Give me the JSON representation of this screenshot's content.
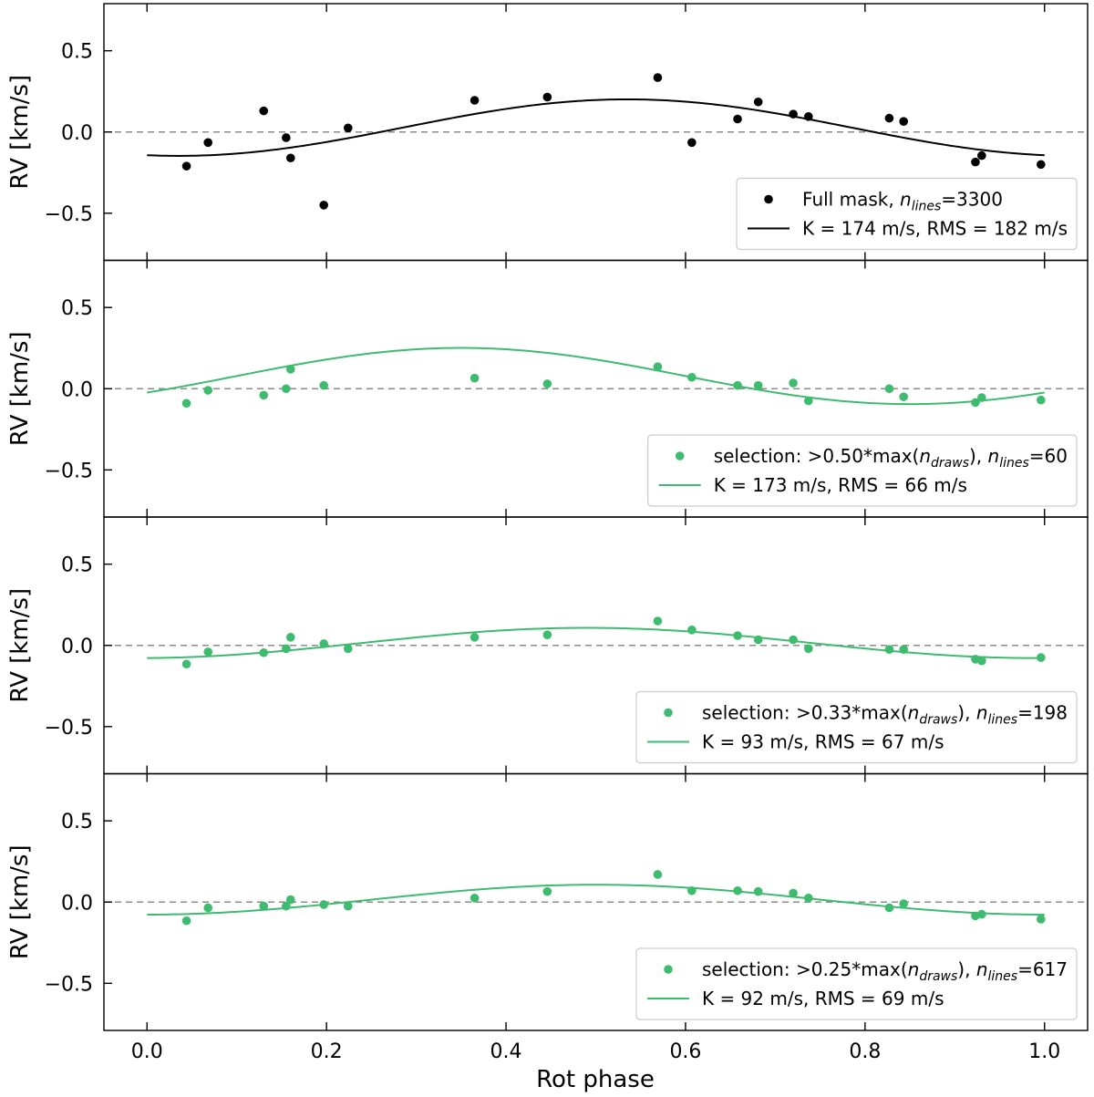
{
  "chart_data": {
    "type": "scatter",
    "xlabel": "Rot phase",
    "ylabel": "RV [km/s]",
    "xlim": [
      -0.048,
      1.048
    ],
    "ylim": [
      -0.79,
      0.79
    ],
    "xticks": [
      0.0,
      0.2,
      0.4,
      0.6,
      0.8,
      1.0
    ],
    "xtick_labels": [
      "0.0",
      "0.2",
      "0.4",
      "0.6",
      "0.8",
      "1.0"
    ],
    "yticks": [
      0.5,
      0.0,
      -0.5
    ],
    "ytick_labels": [
      "0.5",
      "0.0",
      "−0.5"
    ],
    "reference_line_y": 0.0,
    "panels": [
      {
        "color": "#000000",
        "legend": {
          "points_label": "Full mask, ",
          "points_var": "n",
          "points_sub": "lines",
          "points_value": "=3300",
          "line_label": "K = 174 m/s, RMS = 182 m/s"
        },
        "points": [
          [
            0.044,
            -0.21
          ],
          [
            0.068,
            -0.065
          ],
          [
            0.13,
            0.13
          ],
          [
            0.155,
            -0.035
          ],
          [
            0.16,
            -0.16
          ],
          [
            0.197,
            -0.45
          ],
          [
            0.224,
            0.025
          ],
          [
            0.365,
            0.195
          ],
          [
            0.446,
            0.215
          ],
          [
            0.569,
            0.335
          ],
          [
            0.607,
            -0.065
          ],
          [
            0.658,
            0.08
          ],
          [
            0.681,
            0.185
          ],
          [
            0.72,
            0.11
          ],
          [
            0.737,
            0.095
          ],
          [
            0.827,
            0.085
          ],
          [
            0.843,
            0.065
          ],
          [
            0.923,
            -0.185
          ],
          [
            0.93,
            -0.145
          ],
          [
            0.996,
            -0.2
          ]
        ],
        "fit": {
          "offset": 0.027,
          "amplitude": 0.174,
          "phase_max": 0.535
        }
      },
      {
        "color": "#3dbb6e",
        "legend": {
          "points_label": "selection: >0.50*max(",
          "points_var": "n",
          "points_sub": "draws",
          "points_mid": "), ",
          "points_var2": "n",
          "points_sub2": "lines",
          "points_value": "=60",
          "line_label": "K = 173 m/s, RMS = 66 m/s"
        },
        "points": [
          [
            0.044,
            -0.09
          ],
          [
            0.068,
            -0.01
          ],
          [
            0.13,
            -0.04
          ],
          [
            0.155,
            0.0
          ],
          [
            0.16,
            0.12
          ],
          [
            0.197,
            0.02
          ],
          [
            0.365,
            0.065
          ],
          [
            0.446,
            0.03
          ],
          [
            0.569,
            0.135
          ],
          [
            0.607,
            0.07
          ],
          [
            0.658,
            0.02
          ],
          [
            0.681,
            0.02
          ],
          [
            0.72,
            0.035
          ],
          [
            0.737,
            -0.075
          ],
          [
            0.827,
            0.0
          ],
          [
            0.843,
            -0.05
          ],
          [
            0.923,
            -0.085
          ],
          [
            0.93,
            -0.055
          ],
          [
            0.996,
            -0.07
          ]
        ],
        "fit": {
          "offset": 0.078,
          "amplitude": 0.173,
          "phase_max": 0.35
        }
      },
      {
        "color": "#3dbb6e",
        "legend": {
          "points_label": "selection: >0.33*max(",
          "points_var": "n",
          "points_sub": "draws",
          "points_mid": "), ",
          "points_var2": "n",
          "points_sub2": "lines",
          "points_value": "=198",
          "line_label": "K = 93 m/s, RMS = 67 m/s"
        },
        "points": [
          [
            0.044,
            -0.115
          ],
          [
            0.068,
            -0.04
          ],
          [
            0.13,
            -0.045
          ],
          [
            0.155,
            -0.02
          ],
          [
            0.16,
            0.05
          ],
          [
            0.197,
            0.01
          ],
          [
            0.224,
            -0.02
          ],
          [
            0.365,
            0.05
          ],
          [
            0.446,
            0.065
          ],
          [
            0.569,
            0.15
          ],
          [
            0.607,
            0.095
          ],
          [
            0.658,
            0.06
          ],
          [
            0.681,
            0.035
          ],
          [
            0.72,
            0.035
          ],
          [
            0.737,
            -0.02
          ],
          [
            0.827,
            -0.025
          ],
          [
            0.843,
            -0.025
          ],
          [
            0.923,
            -0.085
          ],
          [
            0.93,
            -0.095
          ],
          [
            0.996,
            -0.075
          ]
        ],
        "fit": {
          "offset": 0.015,
          "amplitude": 0.093,
          "phase_max": 0.49
        }
      },
      {
        "color": "#3dbb6e",
        "legend": {
          "points_label": "selection: >0.25*max(",
          "points_var": "n",
          "points_sub": "draws",
          "points_mid": "), ",
          "points_var2": "n",
          "points_sub2": "lines",
          "points_value": "=617",
          "line_label": "K = 92 m/s, RMS = 69 m/s"
        },
        "points": [
          [
            0.044,
            -0.115
          ],
          [
            0.068,
            -0.035
          ],
          [
            0.13,
            -0.025
          ],
          [
            0.155,
            -0.025
          ],
          [
            0.16,
            0.015
          ],
          [
            0.197,
            -0.015
          ],
          [
            0.224,
            -0.025
          ],
          [
            0.365,
            0.025
          ],
          [
            0.446,
            0.065
          ],
          [
            0.569,
            0.17
          ],
          [
            0.607,
            0.07
          ],
          [
            0.658,
            0.07
          ],
          [
            0.681,
            0.065
          ],
          [
            0.72,
            0.055
          ],
          [
            0.737,
            0.025
          ],
          [
            0.827,
            -0.035
          ],
          [
            0.843,
            -0.01
          ],
          [
            0.923,
            -0.085
          ],
          [
            0.93,
            -0.075
          ],
          [
            0.996,
            -0.105
          ]
        ],
        "fit": {
          "offset": 0.015,
          "amplitude": 0.092,
          "phase_max": 0.5
        }
      }
    ]
  }
}
